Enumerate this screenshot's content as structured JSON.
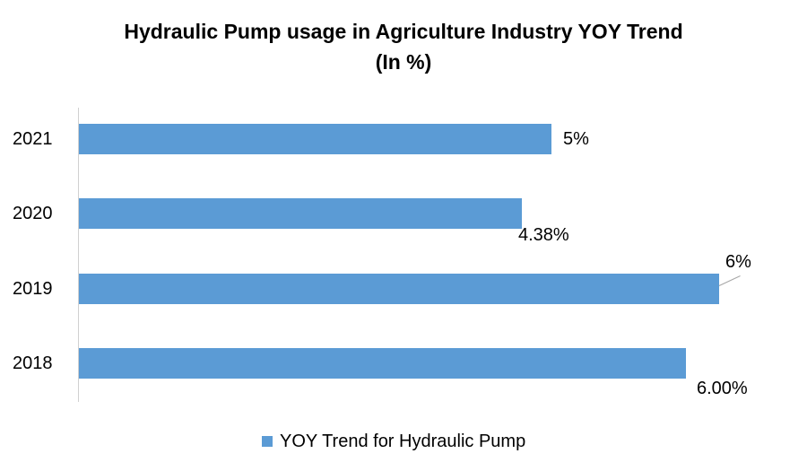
{
  "chart_data": {
    "type": "bar",
    "orientation": "horizontal",
    "title": "Hydraulic Pump usage in Agriculture Industry YOY Trend",
    "subtitle": "(In %)",
    "categories": [
      "2021",
      "2020",
      "2019",
      "2018"
    ],
    "series": [
      {
        "name": "YOY Trend for Hydraulic Pump",
        "color": "#5b9bd5",
        "values": [
          4.67,
          4.38,
          6.33,
          6.0
        ],
        "data_labels": [
          "5%",
          "4.38%",
          "6%",
          "6.00%"
        ]
      }
    ],
    "xlabel": "",
    "ylabel": "",
    "grid": false,
    "legend_position": "bottom"
  },
  "title_line1": "Hydraulic Pump usage in Agriculture Industry YOY Trend",
  "title_line2": "(In %)",
  "legend_label": "YOY Trend for Hydraulic Pump"
}
